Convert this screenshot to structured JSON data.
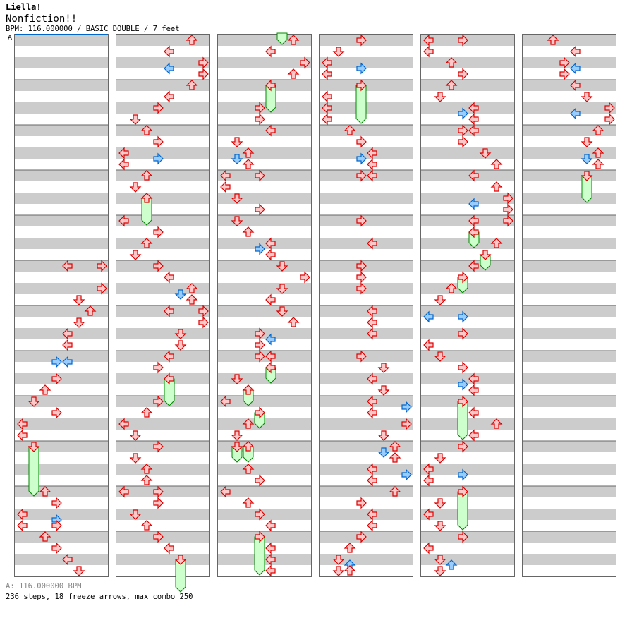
{
  "header": {
    "artist": "Liella!",
    "title": "Nonfiction!!",
    "info": "BPM: 116.000000 / BASIC DOUBLE / 7 feet"
  },
  "marker": {
    "label": "A"
  },
  "footer": {
    "bpm_line": "A: 116.000000 BPM",
    "stats": "236 steps, 18 freeze arrows, max combo 250"
  },
  "colors": {
    "stripe": "#cccccc",
    "note_red_stroke": "#dd0000",
    "note_red_fill": "#ffc8c8",
    "note_blue_stroke": "#0066cc",
    "note_blue_fill": "#99ccff",
    "freeze_fill": "#ccffcc",
    "freeze_stroke": "#008800",
    "marker_line": "#0066cc"
  },
  "chart_data": {
    "type": "step-chart",
    "lanes": [
      "left",
      "down",
      "up",
      "right",
      "left",
      "down",
      "up",
      "right"
    ],
    "units_per_column": 96,
    "columns": [
      {
        "notes": [
          [
            40,
            4
          ],
          [
            40,
            7
          ],
          [
            44,
            7
          ],
          [
            46,
            5
          ],
          [
            48,
            6
          ],
          [
            50,
            5
          ],
          [
            52,
            4
          ],
          [
            54,
            4
          ],
          [
            57,
            3,
            "b"
          ],
          [
            57,
            4,
            "b"
          ],
          [
            60,
            3
          ],
          [
            62,
            2
          ],
          [
            64,
            1
          ],
          [
            66,
            3
          ],
          [
            68,
            0
          ],
          [
            70,
            0
          ],
          [
            72,
            1
          ],
          [
            80,
            2
          ],
          [
            82,
            3
          ],
          [
            84,
            0
          ],
          [
            85,
            3,
            "b"
          ],
          [
            86,
            0
          ],
          [
            86,
            3
          ],
          [
            88,
            2
          ],
          [
            90,
            3
          ],
          [
            92,
            4
          ],
          [
            94,
            5
          ]
        ],
        "freezes": [
          [
            72,
            1,
            80
          ]
        ]
      },
      {
        "notes": [
          [
            0,
            6
          ],
          [
            2,
            4
          ],
          [
            4,
            7
          ],
          [
            5,
            4,
            "b"
          ],
          [
            6,
            7
          ],
          [
            8,
            6
          ],
          [
            10,
            4
          ],
          [
            12,
            3
          ],
          [
            14,
            1
          ],
          [
            16,
            2
          ],
          [
            18,
            3
          ],
          [
            20,
            0
          ],
          [
            21,
            3,
            "b"
          ],
          [
            22,
            0
          ],
          [
            24,
            2
          ],
          [
            26,
            1
          ],
          [
            28,
            2
          ],
          [
            32,
            0
          ],
          [
            34,
            3
          ],
          [
            36,
            2
          ],
          [
            38,
            1
          ],
          [
            40,
            3
          ],
          [
            42,
            4
          ],
          [
            44,
            6
          ],
          [
            45,
            5,
            "b"
          ],
          [
            46,
            6
          ],
          [
            48,
            4
          ],
          [
            48,
            7
          ],
          [
            50,
            7
          ],
          [
            52,
            5
          ],
          [
            54,
            5
          ],
          [
            56,
            4
          ],
          [
            58,
            3
          ],
          [
            60,
            4
          ],
          [
            64,
            3
          ],
          [
            66,
            2
          ],
          [
            68,
            0
          ],
          [
            70,
            1
          ],
          [
            72,
            3
          ],
          [
            74,
            1
          ],
          [
            76,
            2
          ],
          [
            78,
            2
          ],
          [
            80,
            0
          ],
          [
            80,
            3
          ],
          [
            82,
            3
          ],
          [
            84,
            1
          ],
          [
            86,
            2
          ],
          [
            88,
            3
          ],
          [
            90,
            4
          ],
          [
            92,
            5
          ]
        ],
        "freezes": [
          [
            28,
            2,
            32
          ],
          [
            60,
            4,
            64
          ],
          [
            92,
            5,
            97
          ]
        ]
      },
      {
        "notes": [
          [
            0,
            6
          ],
          [
            2,
            4
          ],
          [
            4,
            7
          ],
          [
            6,
            6
          ],
          [
            8,
            4
          ],
          [
            12,
            3
          ],
          [
            14,
            3
          ],
          [
            16,
            4
          ],
          [
            18,
            1
          ],
          [
            20,
            2
          ],
          [
            21,
            1,
            "b"
          ],
          [
            22,
            2
          ],
          [
            24,
            0
          ],
          [
            24,
            3
          ],
          [
            26,
            0
          ],
          [
            28,
            1
          ],
          [
            30,
            3
          ],
          [
            32,
            1
          ],
          [
            34,
            2
          ],
          [
            36,
            4
          ],
          [
            37,
            3,
            "b"
          ],
          [
            38,
            4
          ],
          [
            40,
            5
          ],
          [
            42,
            7
          ],
          [
            44,
            5
          ],
          [
            46,
            4
          ],
          [
            48,
            5
          ],
          [
            50,
            6
          ],
          [
            52,
            3
          ],
          [
            53,
            4,
            "b"
          ],
          [
            54,
            3
          ],
          [
            56,
            3
          ],
          [
            56,
            4
          ],
          [
            58,
            4
          ],
          [
            60,
            1
          ],
          [
            62,
            2
          ],
          [
            64,
            0
          ],
          [
            66,
            3
          ],
          [
            68,
            2
          ],
          [
            70,
            1
          ],
          [
            72,
            1
          ],
          [
            72,
            2
          ],
          [
            76,
            2
          ],
          [
            78,
            3
          ],
          [
            80,
            0
          ],
          [
            82,
            2
          ],
          [
            84,
            3
          ],
          [
            86,
            4
          ],
          [
            88,
            3
          ],
          [
            90,
            4
          ],
          [
            92,
            4
          ],
          [
            94,
            4
          ]
        ],
        "freezes": [
          [
            -5,
            5,
            0
          ],
          [
            8,
            4,
            12
          ],
          [
            58,
            4,
            60
          ],
          [
            62,
            2,
            64
          ],
          [
            66,
            3,
            68
          ],
          [
            72,
            1,
            74
          ],
          [
            72,
            2,
            74
          ],
          [
            88,
            3,
            94
          ]
        ]
      },
      {
        "notes": [
          [
            0,
            3
          ],
          [
            2,
            1
          ],
          [
            4,
            0
          ],
          [
            5,
            3,
            "b"
          ],
          [
            6,
            0
          ],
          [
            8,
            3
          ],
          [
            10,
            0
          ],
          [
            12,
            0
          ],
          [
            14,
            0
          ],
          [
            16,
            2
          ],
          [
            18,
            3
          ],
          [
            20,
            4
          ],
          [
            21,
            3,
            "b"
          ],
          [
            22,
            4
          ],
          [
            24,
            3
          ],
          [
            24,
            4
          ],
          [
            32,
            3
          ],
          [
            36,
            4
          ],
          [
            40,
            3
          ],
          [
            42,
            3
          ],
          [
            44,
            3
          ],
          [
            48,
            4
          ],
          [
            50,
            4
          ],
          [
            52,
            4
          ],
          [
            56,
            3
          ],
          [
            58,
            5
          ],
          [
            60,
            4
          ],
          [
            62,
            5
          ],
          [
            64,
            4
          ],
          [
            65,
            7,
            "b"
          ],
          [
            66,
            4
          ],
          [
            68,
            7
          ],
          [
            70,
            5
          ],
          [
            72,
            6
          ],
          [
            73,
            5,
            "b"
          ],
          [
            74,
            6
          ],
          [
            76,
            4
          ],
          [
            77,
            7,
            "b"
          ],
          [
            78,
            4
          ],
          [
            80,
            6
          ],
          [
            82,
            3
          ],
          [
            84,
            4
          ],
          [
            86,
            4
          ],
          [
            88,
            3
          ],
          [
            90,
            2
          ],
          [
            92,
            1
          ],
          [
            93,
            2,
            "b"
          ],
          [
            94,
            1
          ],
          [
            94,
            2
          ]
        ],
        "freezes": [
          [
            8,
            3,
            14
          ]
        ]
      },
      {
        "notes": [
          [
            0,
            0
          ],
          [
            0,
            3
          ],
          [
            2,
            0
          ],
          [
            4,
            2
          ],
          [
            6,
            3
          ],
          [
            8,
            2
          ],
          [
            10,
            1
          ],
          [
            12,
            4
          ],
          [
            13,
            3,
            "b"
          ],
          [
            14,
            4
          ],
          [
            16,
            3
          ],
          [
            16,
            4
          ],
          [
            18,
            3
          ],
          [
            20,
            5
          ],
          [
            22,
            6
          ],
          [
            24,
            4
          ],
          [
            26,
            6
          ],
          [
            28,
            7
          ],
          [
            29,
            4,
            "b"
          ],
          [
            30,
            7
          ],
          [
            32,
            4
          ],
          [
            32,
            7
          ],
          [
            34,
            4
          ],
          [
            36,
            6
          ],
          [
            38,
            5
          ],
          [
            40,
            4
          ],
          [
            42,
            3
          ],
          [
            44,
            2
          ],
          [
            46,
            1
          ],
          [
            49,
            0,
            "b"
          ],
          [
            49,
            3,
            "b"
          ],
          [
            52,
            3
          ],
          [
            54,
            0
          ],
          [
            56,
            1
          ],
          [
            58,
            3
          ],
          [
            60,
            4
          ],
          [
            61,
            3,
            "b"
          ],
          [
            62,
            4
          ],
          [
            64,
            3
          ],
          [
            66,
            4
          ],
          [
            68,
            6
          ],
          [
            70,
            4
          ],
          [
            72,
            3
          ],
          [
            74,
            1
          ],
          [
            76,
            0
          ],
          [
            77,
            3,
            "b"
          ],
          [
            78,
            0
          ],
          [
            80,
            3
          ],
          [
            82,
            1
          ],
          [
            84,
            0
          ],
          [
            86,
            1
          ],
          [
            88,
            3
          ],
          [
            90,
            0
          ],
          [
            92,
            1
          ],
          [
            93,
            2,
            "b"
          ],
          [
            94,
            1
          ]
        ],
        "freezes": [
          [
            34,
            4,
            36
          ],
          [
            38,
            5,
            40
          ],
          [
            42,
            3,
            44
          ],
          [
            64,
            3,
            70
          ],
          [
            80,
            3,
            86
          ]
        ]
      },
      {
        "notes": [
          [
            0,
            2
          ],
          [
            2,
            4
          ],
          [
            4,
            3
          ],
          [
            5,
            4,
            "b"
          ],
          [
            6,
            3
          ],
          [
            8,
            4
          ],
          [
            10,
            5
          ],
          [
            12,
            7
          ],
          [
            13,
            4,
            "b"
          ],
          [
            14,
            7
          ],
          [
            16,
            6
          ],
          [
            18,
            5
          ],
          [
            20,
            6
          ],
          [
            21,
            5,
            "b"
          ],
          [
            22,
            6
          ],
          [
            24,
            5
          ]
        ],
        "freezes": [
          [
            24,
            5,
            28
          ]
        ]
      }
    ]
  }
}
